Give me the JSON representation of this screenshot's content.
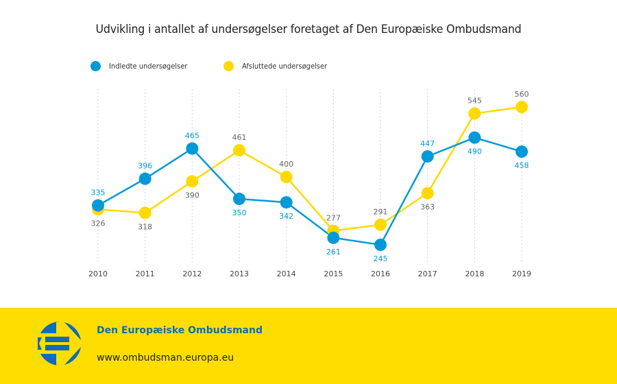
{
  "colors": {
    "initiated": "#0099d8",
    "closed": "#ffd900",
    "footer_bg": "#ffdd00",
    "footer_title": "#0f6cb6",
    "logo": "#0f6cb6",
    "grid": "#d9d9d9",
    "closed_label": "#666666",
    "axis_label": "#444444"
  },
  "chart_data": {
    "type": "line",
    "title": "Udvikling i antallet af undersøgelser foretaget af Den Europæiske Ombudsmand",
    "xlabel": "",
    "ylabel": "",
    "categories": [
      "2010",
      "2011",
      "2012",
      "2013",
      "2014",
      "2015",
      "2016",
      "2017",
      "2018",
      "2019"
    ],
    "series": [
      {
        "name": "Indledte undersøgelser",
        "color": "#0099d8",
        "values": [
          335,
          396,
          465,
          350,
          342,
          261,
          245,
          447,
          490,
          458
        ]
      },
      {
        "name": "Afsluttede undersøgelser",
        "color": "#ffd900",
        "values": [
          326,
          318,
          390,
          461,
          400,
          277,
          291,
          363,
          545,
          560
        ]
      }
    ],
    "ylim": [
      245,
      560
    ],
    "grid": "vertical dotted",
    "legend_position": "top-left",
    "data_labels": true
  },
  "legend": [
    {
      "label": "Indledte undersøgelser",
      "color": "#0099d8"
    },
    {
      "label": "Afsluttede undersøgelser",
      "color": "#ffd900"
    }
  ],
  "footer": {
    "org_name": "Den Europæiske Ombudsmand",
    "url": "www.ombudsman.europa.eu",
    "logo_icon": "european-ombudsman-logo-icon"
  }
}
